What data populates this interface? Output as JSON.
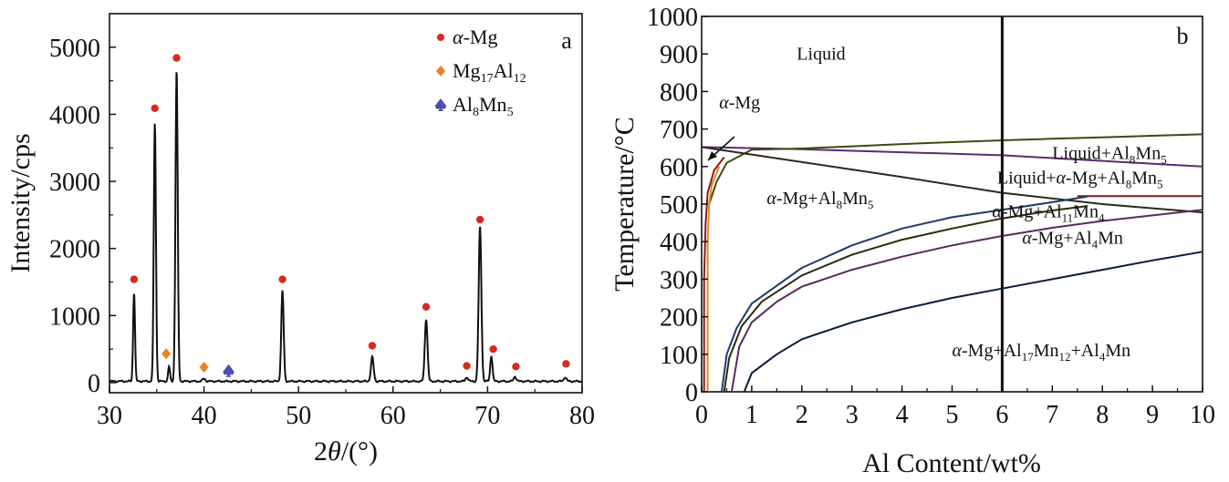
{
  "chart_data": [
    {
      "type": "line",
      "panel_label": "a",
      "xlabel": "2θ/(°)",
      "ylabel": "Intensity/cps",
      "xlim": [
        30,
        80
      ],
      "ylim": [
        -150,
        5500
      ],
      "xticks": [
        "30",
        "40",
        "50",
        "60",
        "70",
        "80"
      ],
      "yticks": [
        "0",
        "1000",
        "2000",
        "3000",
        "4000",
        "5000"
      ],
      "legend_position": "top-right",
      "legend": [
        {
          "label_main": "α-Mg",
          "marker": "circle",
          "color": "#d62a1f"
        },
        {
          "label_main": "Mg17Al12",
          "marker": "diamond",
          "color": "#f08020"
        },
        {
          "label_main": "Al8Mn5",
          "marker": "spade",
          "color": "#4a4fb0"
        }
      ],
      "baseline": 20,
      "peaks": [
        {
          "x": 32.6,
          "h": 1330,
          "w": 0.14
        },
        {
          "x": 34.8,
          "h": 3850,
          "w": 0.16
        },
        {
          "x": 36.3,
          "h": 220,
          "w": 0.14
        },
        {
          "x": 37.1,
          "h": 4650,
          "w": 0.17
        },
        {
          "x": 40.0,
          "h": 40,
          "w": 0.2
        },
        {
          "x": 48.3,
          "h": 1350,
          "w": 0.18
        },
        {
          "x": 57.8,
          "h": 360,
          "w": 0.2
        },
        {
          "x": 63.5,
          "h": 930,
          "w": 0.2
        },
        {
          "x": 67.8,
          "h": 60,
          "w": 0.2
        },
        {
          "x": 69.2,
          "h": 2300,
          "w": 0.2
        },
        {
          "x": 70.4,
          "h": 380,
          "w": 0.17
        },
        {
          "x": 72.9,
          "h": 70,
          "w": 0.2
        },
        {
          "x": 78.2,
          "h": 60,
          "w": 0.2
        }
      ],
      "markers": [
        {
          "phase": "α-Mg",
          "x": 32.6,
          "y": 1540
        },
        {
          "phase": "α-Mg",
          "x": 34.8,
          "y": 4090
        },
        {
          "phase": "α-Mg",
          "x": 37.1,
          "y": 4840
        },
        {
          "phase": "α-Mg",
          "x": 48.3,
          "y": 1540
        },
        {
          "phase": "α-Mg",
          "x": 57.8,
          "y": 550
        },
        {
          "phase": "α-Mg",
          "x": 63.5,
          "y": 1130
        },
        {
          "phase": "α-Mg",
          "x": 67.8,
          "y": 250
        },
        {
          "phase": "α-Mg",
          "x": 69.2,
          "y": 2430
        },
        {
          "phase": "α-Mg",
          "x": 70.6,
          "y": 500
        },
        {
          "phase": "α-Mg",
          "x": 73.0,
          "y": 240
        },
        {
          "phase": "α-Mg",
          "x": 78.3,
          "y": 280
        },
        {
          "phase": "Mg17Al12",
          "x": 36.0,
          "y": 430
        },
        {
          "phase": "Mg17Al12",
          "x": 40.0,
          "y": 230
        },
        {
          "phase": "Al8Mn5",
          "x": 42.6,
          "y": 180
        }
      ]
    },
    {
      "type": "line",
      "panel_label": "b",
      "xlabel": "Al Content/wt%",
      "ylabel": "Temperature/°C",
      "xlim": [
        0,
        10
      ],
      "ylim": [
        0,
        1000
      ],
      "xticks": [
        "0",
        "1",
        "2",
        "3",
        "4",
        "5",
        "6",
        "7",
        "8",
        "9",
        "10"
      ],
      "yticks": [
        "0",
        "100",
        "200",
        "300",
        "400",
        "500",
        "600",
        "700",
        "800",
        "900",
        "1000"
      ],
      "vertical_line_x": 6,
      "regions": [
        {
          "main": "Liquid",
          "x": 1.9,
          "y": 885
        },
        {
          "main": "α-Mg",
          "x": 0.35,
          "y": 755
        },
        {
          "main": "Liquid+Al8Mn5",
          "x": 7.0,
          "y": 620
        },
        {
          "main": "Liquid+α-Mg+Al8Mn5",
          "x": 5.9,
          "y": 555
        },
        {
          "main": "α-Mg+Al8Mn5",
          "x": 1.3,
          "y": 500
        },
        {
          "main": "α-Mg+Al11Mn4",
          "x": 5.8,
          "y": 465
        },
        {
          "main": "α-Mg+Al4Mn",
          "x": 6.4,
          "y": 395
        },
        {
          "main": "α-Mg+Al17Mn12+Al4Mn",
          "x": 5.0,
          "y": 95
        }
      ],
      "curves": [
        {
          "name": "",
          "color": "#5b2a6e",
          "points": [
            [
              0,
              652
            ],
            [
              2,
              646
            ],
            [
              4,
              638
            ],
            [
              6,
              630
            ],
            [
              8,
              615
            ],
            [
              10,
              600
            ]
          ]
        },
        {
          "name": "",
          "color": "#3a4a12",
          "points": [
            [
              0.15,
              500
            ],
            [
              0.3,
              560
            ],
            [
              0.5,
              610
            ],
            [
              1,
              645
            ],
            [
              2,
              648
            ],
            [
              3,
              654
            ],
            [
              4,
              660
            ],
            [
              5,
              665
            ],
            [
              6,
              670
            ],
            [
              7,
              674
            ],
            [
              8,
              678
            ],
            [
              9,
              682
            ],
            [
              10,
              686
            ]
          ]
        },
        {
          "name": "",
          "color": "#2a2a1a",
          "points": [
            [
              0,
              652
            ],
            [
              2,
              612
            ],
            [
              4,
              572
            ],
            [
              6,
              530
            ],
            [
              8,
              500
            ],
            [
              10,
              478
            ]
          ]
        },
        {
          "name": "",
          "color": "#7a1a1a",
          "points": [
            [
              7.5,
              521
            ],
            [
              10,
              521
            ]
          ]
        },
        {
          "name": "",
          "color": "#1f3a6e",
          "points": [
            [
              0.4,
              0
            ],
            [
              0.5,
              100
            ],
            [
              0.7,
              170
            ],
            [
              1,
              235
            ],
            [
              2,
              330
            ],
            [
              3,
              390
            ],
            [
              4,
              435
            ],
            [
              5,
              465
            ],
            [
              6,
              485
            ],
            [
              7,
              505
            ],
            [
              7.7,
              520
            ]
          ]
        },
        {
          "name": "",
          "color": "#2a2a0a",
          "points": [
            [
              0.45,
              0
            ],
            [
              0.55,
              90
            ],
            [
              0.8,
              175
            ],
            [
              1.2,
              240
            ],
            [
              2,
              310
            ],
            [
              3,
              365
            ],
            [
              4,
              405
            ],
            [
              5,
              435
            ],
            [
              6,
              462
            ],
            [
              7,
              483
            ],
            [
              7.7,
              495
            ]
          ]
        },
        {
          "name": "",
          "color": "#5a2a5a",
          "points": [
            [
              0.6,
              0
            ],
            [
              0.75,
              120
            ],
            [
              1,
              185
            ],
            [
              1.5,
              240
            ],
            [
              2,
              280
            ],
            [
              3,
              325
            ],
            [
              4,
              360
            ],
            [
              5,
              390
            ],
            [
              6,
              415
            ],
            [
              7,
              437
            ],
            [
              8,
              455
            ],
            [
              9,
              470
            ],
            [
              10,
              485
            ]
          ]
        },
        {
          "name": "",
          "color": "#0a1a3a",
          "points": [
            [
              0.85,
              0
            ],
            [
              1,
              50
            ],
            [
              1.5,
              100
            ],
            [
              2,
              140
            ],
            [
              3,
              185
            ],
            [
              4,
              220
            ],
            [
              5,
              250
            ],
            [
              6,
              275
            ],
            [
              7,
              300
            ],
            [
              8,
              325
            ],
            [
              9,
              350
            ],
            [
              10,
              373
            ]
          ]
        },
        {
          "name": "",
          "color": "#e08a20",
          "points": [
            [
              0.12,
              0
            ],
            [
              0.12,
              400
            ],
            [
              0.15,
              500
            ],
            [
              0.2,
              550
            ],
            [
              0.35,
              600
            ]
          ]
        },
        {
          "name": "",
          "color": "#8a1a1a",
          "points": [
            [
              0.05,
              0
            ],
            [
              0.05,
              300
            ],
            [
              0.08,
              450
            ],
            [
              0.12,
              530
            ],
            [
              0.25,
              590
            ],
            [
              0.45,
              625
            ]
          ]
        }
      ]
    }
  ]
}
